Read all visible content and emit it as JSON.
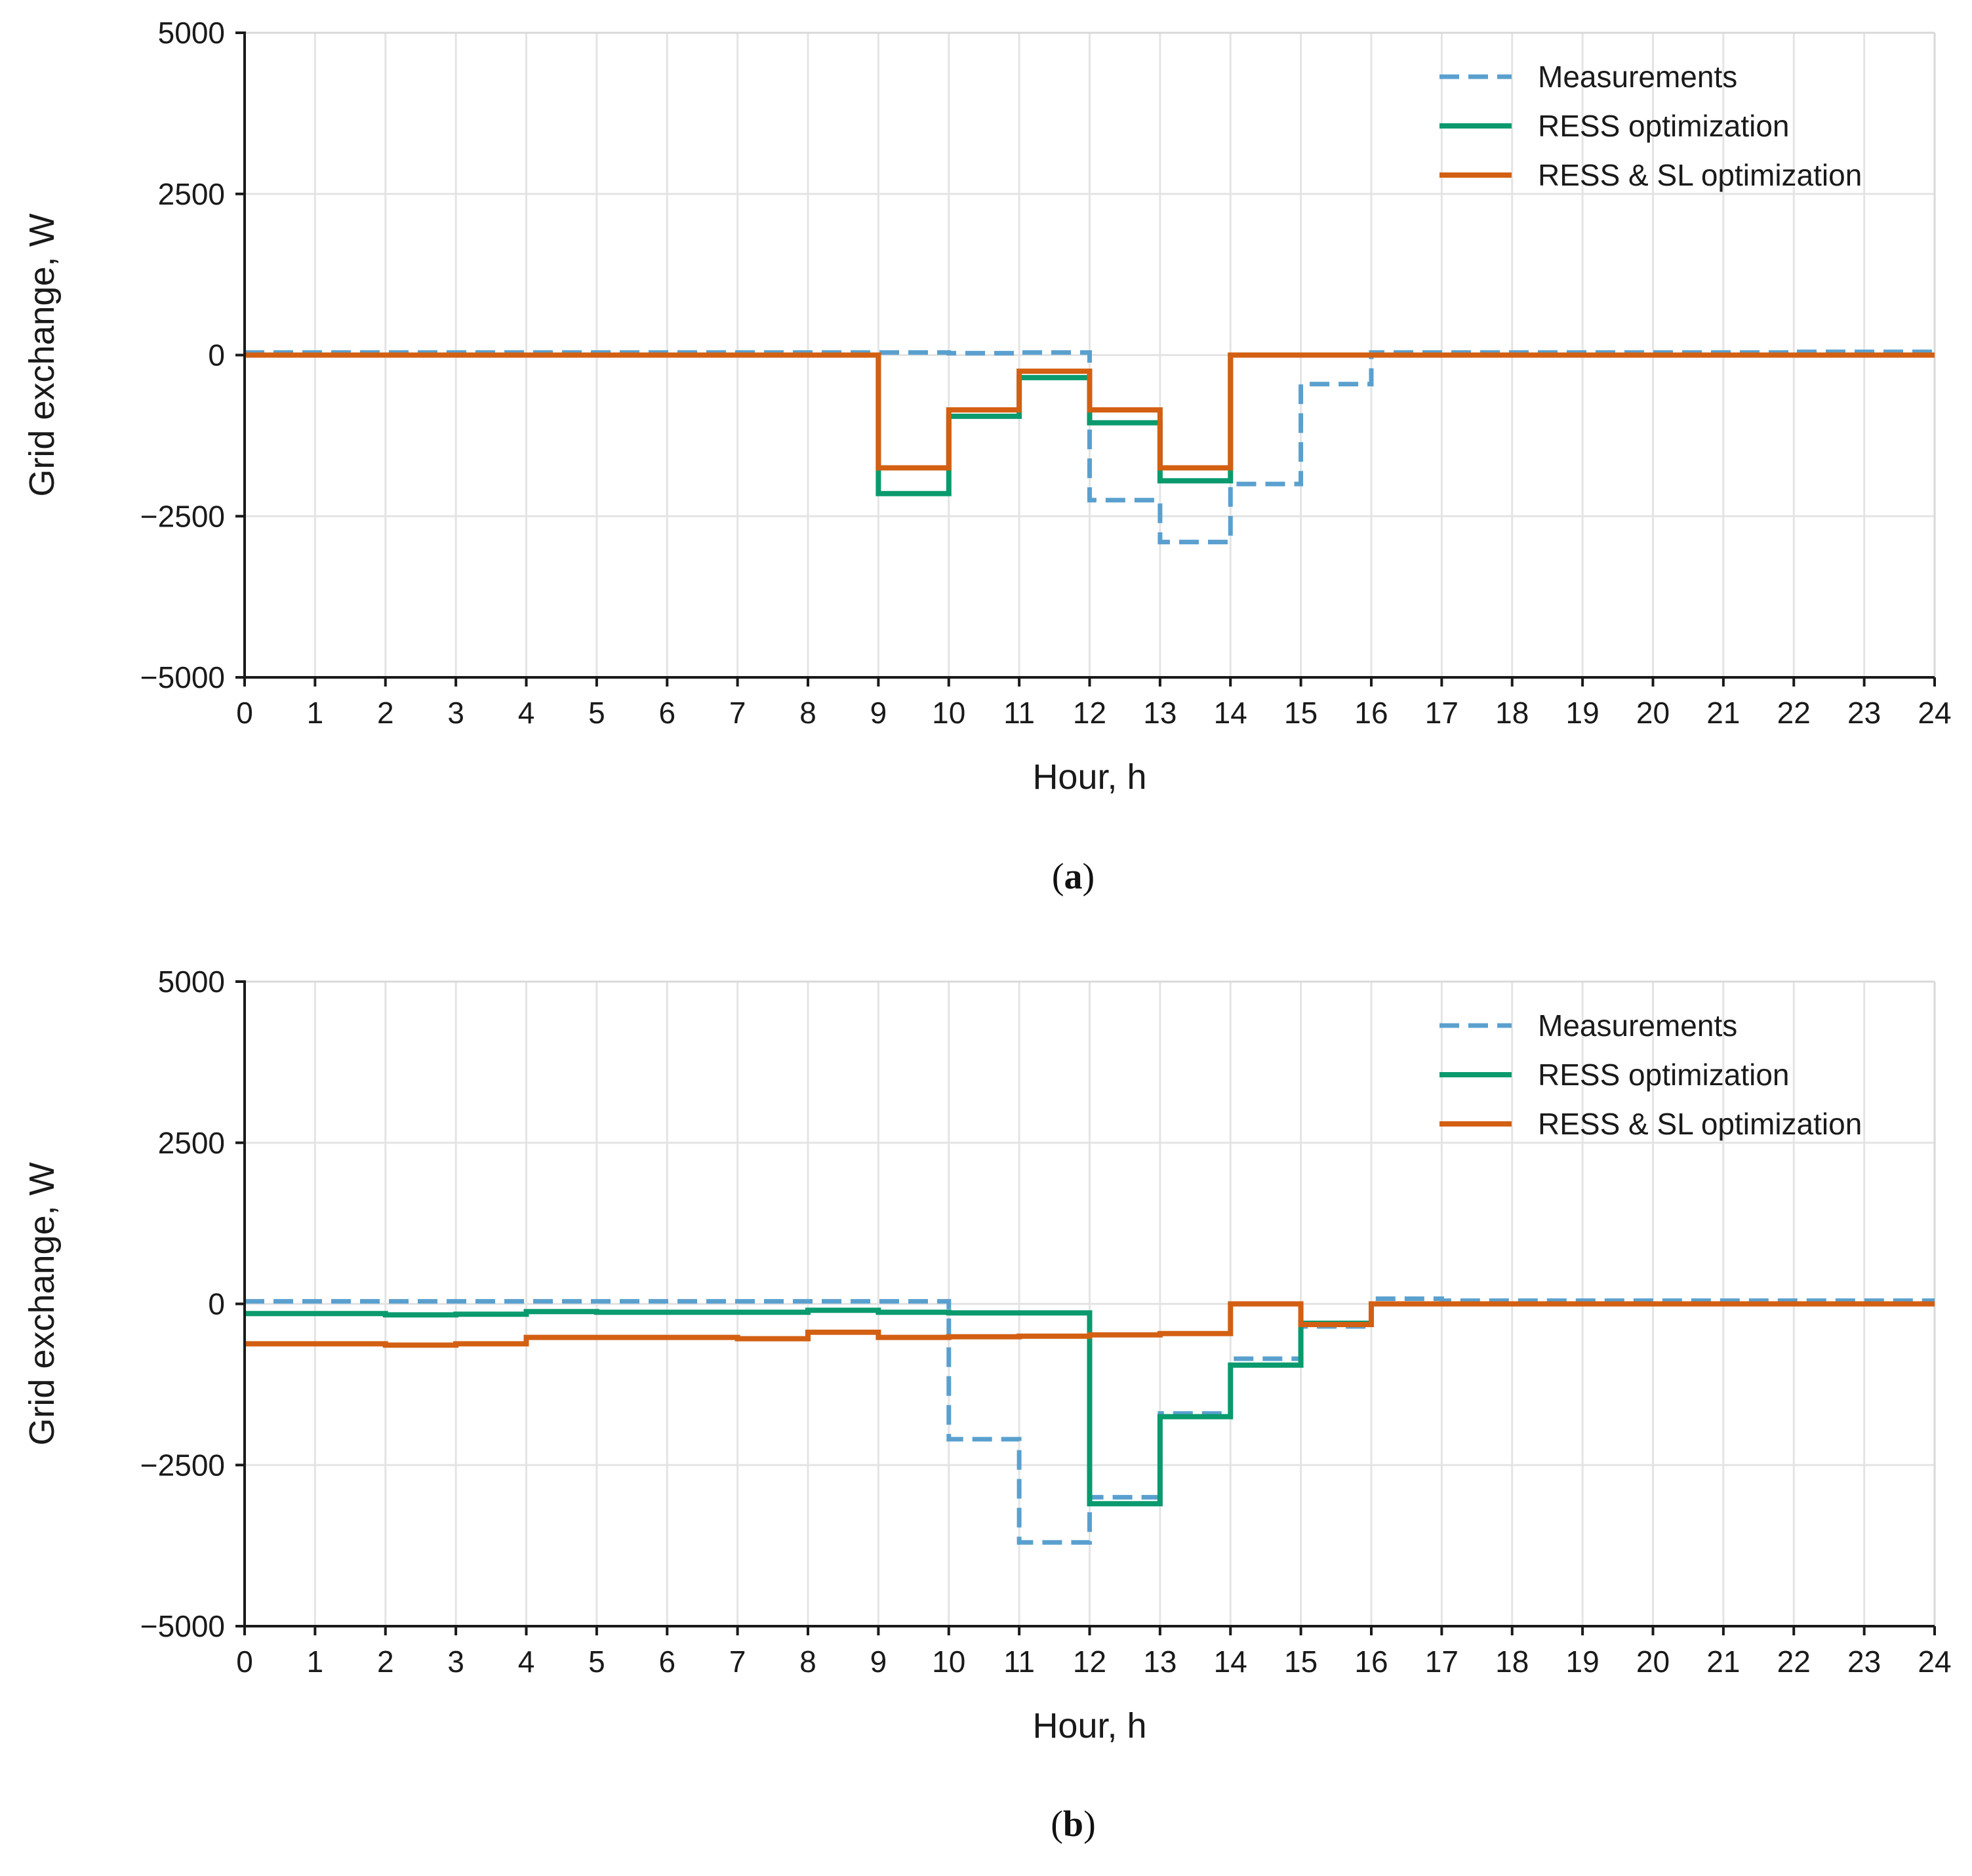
{
  "chart_data": [
    {
      "type": "line",
      "caption_letter": "a",
      "caption_open": "(",
      "caption_close": ")",
      "xlabel": "Hour, h",
      "ylabel": "Grid exchange, W",
      "xlim": [
        0,
        24
      ],
      "ylim": [
        -5000,
        5000
      ],
      "xticks": [
        "0",
        "1",
        "2",
        "3",
        "4",
        "5",
        "6",
        "7",
        "8",
        "9",
        "10",
        "11",
        "12",
        "13",
        "14",
        "15",
        "16",
        "17",
        "18",
        "19",
        "20",
        "21",
        "22",
        "23",
        "24"
      ],
      "yticks": [
        5000,
        2500,
        0,
        -2500,
        -5000
      ],
      "ytick_labels": [
        "5000",
        "2500",
        "0",
        "−2500",
        "−5000"
      ],
      "grid": true,
      "legend_position": "top-right",
      "x": [
        0,
        1,
        2,
        3,
        4,
        5,
        6,
        7,
        8,
        9,
        10,
        11,
        12,
        13,
        14,
        15,
        16,
        17,
        18,
        19,
        20,
        21,
        22,
        23
      ],
      "series": [
        {
          "name": "Measurements",
          "color": "#5aa0cf",
          "dash": true,
          "values": [
            40,
            40,
            40,
            40,
            40,
            40,
            40,
            40,
            40,
            40,
            30,
            40,
            -2250,
            -2900,
            -2000,
            -450,
            40,
            40,
            40,
            40,
            40,
            40,
            50,
            50
          ]
        },
        {
          "name": "RESS optimization",
          "color": "#0a9a6e",
          "dash": false,
          "values": [
            0,
            0,
            0,
            0,
            0,
            0,
            0,
            0,
            0,
            -2150,
            -950,
            -350,
            -1050,
            -1950,
            0,
            0,
            0,
            0,
            0,
            0,
            0,
            0,
            0,
            0
          ]
        },
        {
          "name": "RESS & SL optimization",
          "color": "#d35f12",
          "dash": false,
          "values": [
            0,
            0,
            0,
            0,
            0,
            0,
            0,
            0,
            0,
            -1750,
            -850,
            -250,
            -850,
            -1750,
            0,
            0,
            0,
            0,
            0,
            0,
            0,
            0,
            0,
            0
          ]
        }
      ]
    },
    {
      "type": "line",
      "caption_letter": "b",
      "caption_open": "(",
      "caption_close": ")",
      "xlabel": "Hour, h",
      "ylabel": "Grid exchange, W",
      "xlim": [
        0,
        24
      ],
      "ylim": [
        -5000,
        5000
      ],
      "xticks": [
        "0",
        "1",
        "2",
        "3",
        "4",
        "5",
        "6",
        "7",
        "8",
        "9",
        "10",
        "11",
        "12",
        "13",
        "14",
        "15",
        "16",
        "17",
        "18",
        "19",
        "20",
        "21",
        "22",
        "23",
        "24"
      ],
      "yticks": [
        5000,
        2500,
        0,
        -2500,
        -5000
      ],
      "ytick_labels": [
        "5000",
        "2500",
        "0",
        "−2500",
        "−5000"
      ],
      "grid": true,
      "legend_position": "top-right",
      "x": [
        0,
        1,
        2,
        3,
        4,
        5,
        6,
        7,
        8,
        9,
        10,
        11,
        12,
        13,
        14,
        15,
        16,
        17,
        18,
        19,
        20,
        21,
        22,
        23
      ],
      "series": [
        {
          "name": "Measurements",
          "color": "#5aa0cf",
          "dash": true,
          "values": [
            40,
            40,
            40,
            40,
            40,
            40,
            40,
            40,
            40,
            40,
            -2100,
            -3700,
            -3000,
            -1700,
            -850,
            -350,
            80,
            50,
            50,
            50,
            50,
            50,
            50,
            50
          ]
        },
        {
          "name": "RESS optimization",
          "color": "#0a9a6e",
          "dash": false,
          "values": [
            -150,
            -150,
            -170,
            -160,
            -120,
            -130,
            -130,
            -130,
            -100,
            -130,
            -140,
            -140,
            -3100,
            -1750,
            -950,
            -300,
            0,
            0,
            0,
            0,
            0,
            0,
            0,
            0
          ]
        },
        {
          "name": "RESS & SL optimization",
          "color": "#d35f12",
          "dash": false,
          "values": [
            -620,
            -620,
            -640,
            -620,
            -520,
            -520,
            -520,
            -540,
            -440,
            -520,
            -510,
            -500,
            -480,
            -460,
            0,
            -320,
            0,
            0,
            0,
            0,
            0,
            0,
            0,
            0
          ]
        }
      ]
    }
  ]
}
